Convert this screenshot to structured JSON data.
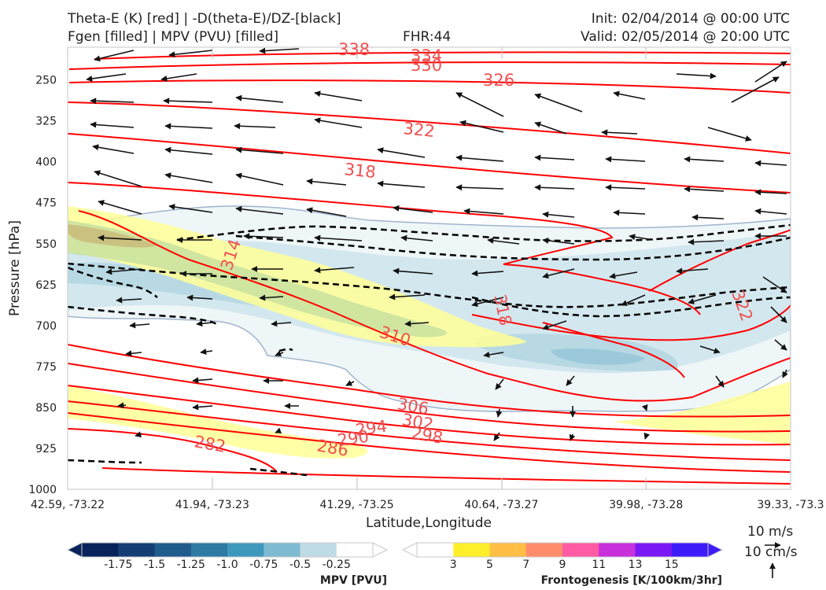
{
  "header": {
    "title_line1": "Theta-E (K) [red] | -D(theta-E)/DZ-[black]",
    "title_line2": "Fgen [filled] | MPV (PVU) [filled]",
    "fhr": "FHR:44",
    "init": "Init: 02/04/2014 @ 00:00 UTC",
    "valid": "Valid: 02/05/2014 @ 20:00 UTC"
  },
  "chart_data": {
    "type": "cross-section",
    "xlabel": "Latitude,Longitude",
    "ylabel": "Pressure [hPa]",
    "x_ticks": [
      "42.59, -73.22",
      "41.94, -73.23",
      "41.29, -73.25",
      "40.64, -73.27",
      "39.98, -73.28",
      "39.33, -73.3"
    ],
    "y_ticks": [
      250,
      325,
      400,
      475,
      550,
      625,
      700,
      775,
      850,
      925,
      1000
    ],
    "y_range": [
      1000,
      190
    ],
    "y_scale": "log-pressure",
    "theta_e_contour_labels": [
      "338",
      "334",
      "330",
      "326",
      "322",
      "318",
      "314",
      "310",
      "306",
      "302",
      "298",
      "294",
      "290",
      "286",
      "282",
      "318",
      "322"
    ],
    "mpv_colorbar": {
      "label": "MPV [PVU]",
      "ticks": [
        "-1.75",
        "-1.5",
        "-1.25",
        "-1.0",
        "-0.75",
        "-0.5",
        "-0.25"
      ],
      "colors": [
        "#08235a",
        "#143e74",
        "#1f5b8c",
        "#2e7aa3",
        "#3e98bb",
        "#7ebad2",
        "#bfdce6",
        "#ffffff"
      ]
    },
    "fgen_colorbar": {
      "label": "Frontogenesis [K/100km/3hr]",
      "ticks": [
        "3",
        "5",
        "7",
        "9",
        "11",
        "13",
        "15"
      ],
      "colors": [
        "#ffffff",
        "#ffef2a",
        "#ffbe46",
        "#ff8c6b",
        "#ff5aa4",
        "#c730db",
        "#7a18f5",
        "#3c1cf8"
      ]
    },
    "vector_reference": [
      "10 m/s",
      "10 cm/s"
    ],
    "colors": {
      "theta_e": "#ff0000",
      "theta_e_label": "#f05050",
      "ddz": "#000000"
    }
  }
}
